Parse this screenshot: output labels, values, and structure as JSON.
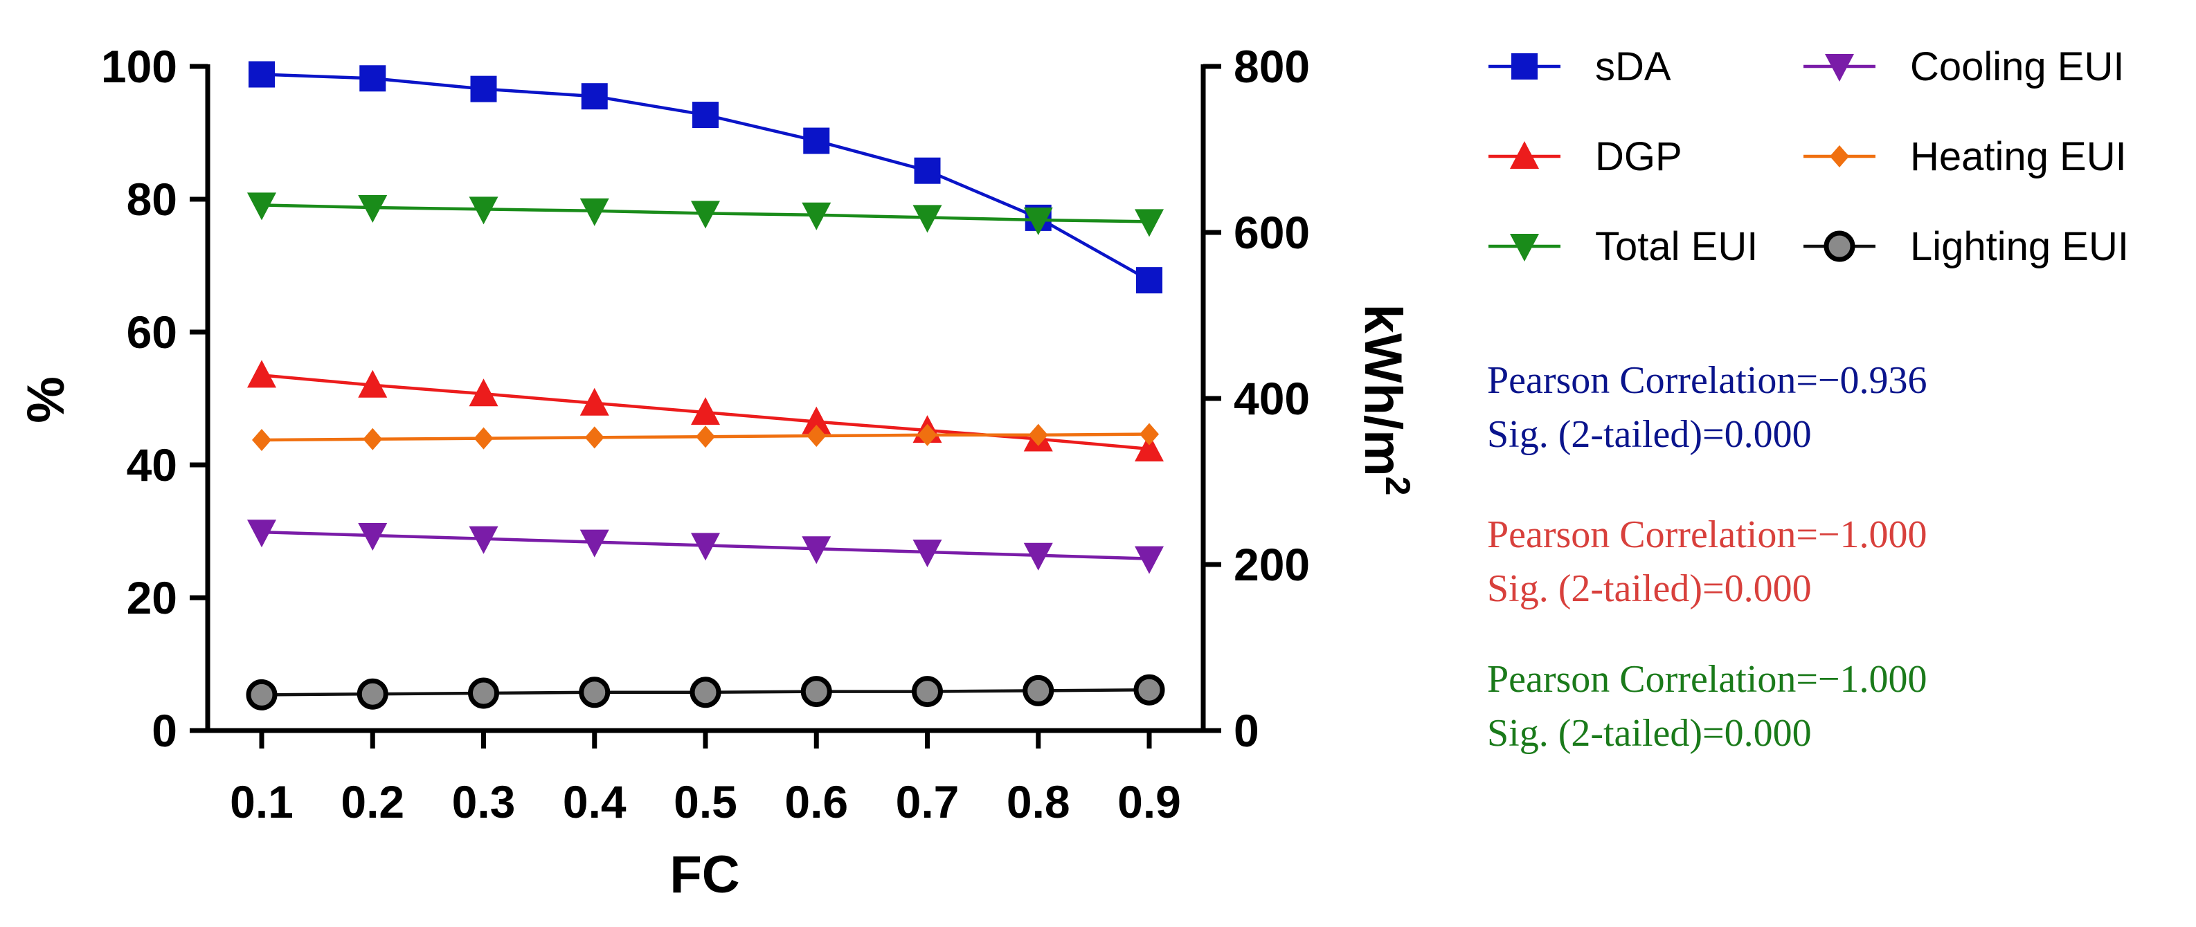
{
  "chart_data": {
    "type": "line",
    "x": [
      0.1,
      0.2,
      0.3,
      0.4,
      0.5,
      0.6,
      0.7,
      0.8,
      0.9
    ],
    "x_tick_labels": [
      "0.1",
      "0.2",
      "0.3",
      "0.4",
      "0.5",
      "0.6",
      "0.7",
      "0.8",
      "0.9"
    ],
    "xlabel": "FC",
    "ylabel_left": "%",
    "ylabel_right_base": "kWh/m",
    "ylabel_right_exp": "2",
    "ylim_left": [
      0,
      100
    ],
    "ylim_right": [
      0,
      800
    ],
    "y_ticks_left": [
      "0",
      "20",
      "40",
      "60",
      "80",
      "100"
    ],
    "y_ticks_right": [
      "0",
      "200",
      "400",
      "600",
      "800"
    ],
    "series": [
      {
        "name": "sDA",
        "axis": "left",
        "color": "#0a14c8",
        "marker": "square",
        "values": [
          98.8,
          98.2,
          96.6,
          95.5,
          92.7,
          88.8,
          84.3,
          77.2,
          67.8
        ]
      },
      {
        "name": "DGP",
        "axis": "left",
        "color": "#ec1c1c",
        "marker": "triangle-up",
        "values": [
          53.5,
          52.0,
          50.7,
          49.3,
          47.9,
          46.5,
          45.2,
          43.9,
          42.4
        ]
      },
      {
        "name": "Total EUI",
        "axis": "right",
        "color": "#1a8c1a",
        "marker": "triangle-down",
        "values": [
          633,
          630,
          628,
          626,
          623,
          621,
          618,
          615,
          613
        ]
      },
      {
        "name": "Cooling EUI",
        "axis": "right",
        "color": "#7a1ca8",
        "marker": "triangle-down",
        "values": [
          239,
          235,
          231,
          227,
          223,
          219,
          215,
          211,
          207
        ]
      },
      {
        "name": "Heating EUI",
        "axis": "right",
        "color": "#f07010",
        "marker": "diamond",
        "values": [
          350,
          351,
          352,
          353,
          354,
          355,
          356,
          356,
          357
        ]
      },
      {
        "name": "Lighting EUI",
        "axis": "right",
        "color": "#111111",
        "marker": "circle",
        "values": [
          43,
          44,
          45,
          46,
          46,
          47,
          47,
          48,
          49
        ]
      }
    ],
    "legend_position": "right-top",
    "annotations": [
      {
        "color": "#0a148c",
        "line1": "Pearson Correlation=−0.936",
        "line2": "Sig. (2-tailed)=0.000"
      },
      {
        "color": "#d8403c",
        "line1": "Pearson Correlation=−1.000",
        "line2": "Sig. (2-tailed)=0.000"
      },
      {
        "color": "#1a7a1a",
        "line1": "Pearson Correlation=−1.000",
        "line2": "Sig. (2-tailed)=0.000"
      }
    ]
  }
}
